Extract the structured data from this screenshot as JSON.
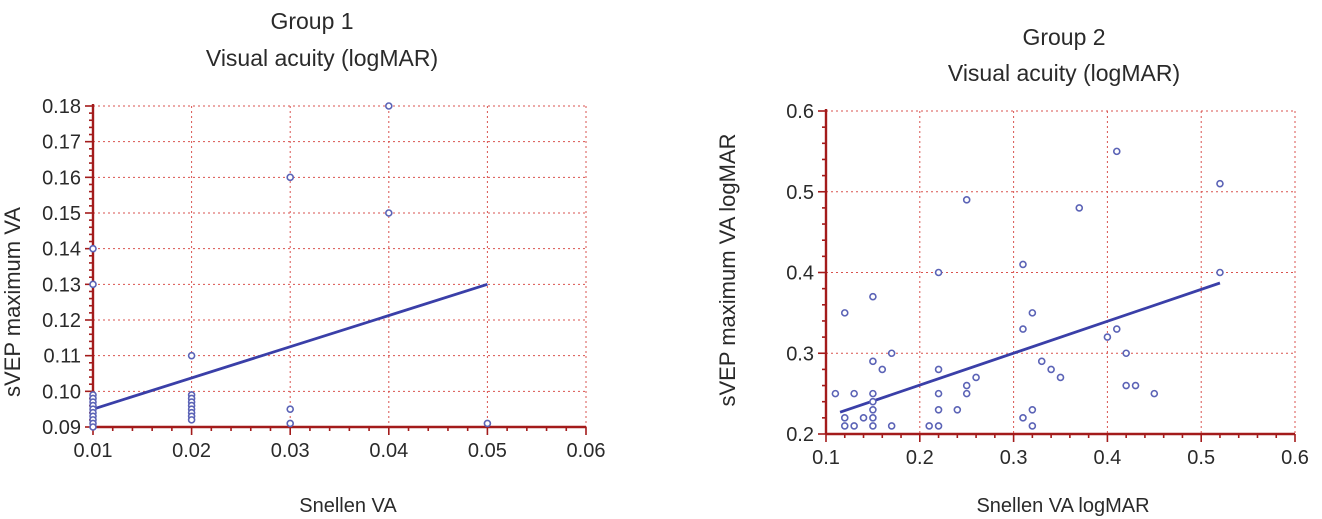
{
  "chart_data": [
    {
      "type": "scatter",
      "title": "Group 1",
      "subtitle": "Visual acuity (logMAR)",
      "xlabel": "Snellen VA",
      "ylabel": "sVEP maximum VA",
      "xlim": [
        0.01,
        0.06
      ],
      "ylim": [
        0.09,
        0.18
      ],
      "x_ticks": [
        "0.01",
        "0.02",
        "0.03",
        "0.04",
        "0.05",
        "0.06"
      ],
      "y_ticks": [
        "0.09",
        "0.10",
        "0.11",
        "0.12",
        "0.13",
        "0.14",
        "0.15",
        "0.16",
        "0.17",
        "0.18"
      ],
      "grid": true,
      "points": [
        {
          "x": 0.01,
          "y": 0.14
        },
        {
          "x": 0.01,
          "y": 0.13
        },
        {
          "x": 0.01,
          "y": 0.099
        },
        {
          "x": 0.01,
          "y": 0.098
        },
        {
          "x": 0.01,
          "y": 0.097
        },
        {
          "x": 0.01,
          "y": 0.096
        },
        {
          "x": 0.01,
          "y": 0.095
        },
        {
          "x": 0.01,
          "y": 0.094
        },
        {
          "x": 0.01,
          "y": 0.093
        },
        {
          "x": 0.01,
          "y": 0.092
        },
        {
          "x": 0.01,
          "y": 0.091
        },
        {
          "x": 0.01,
          "y": 0.09
        },
        {
          "x": 0.02,
          "y": 0.11
        },
        {
          "x": 0.02,
          "y": 0.099
        },
        {
          "x": 0.02,
          "y": 0.098
        },
        {
          "x": 0.02,
          "y": 0.097
        },
        {
          "x": 0.02,
          "y": 0.096
        },
        {
          "x": 0.02,
          "y": 0.095
        },
        {
          "x": 0.02,
          "y": 0.094
        },
        {
          "x": 0.02,
          "y": 0.093
        },
        {
          "x": 0.02,
          "y": 0.092
        },
        {
          "x": 0.03,
          "y": 0.16
        },
        {
          "x": 0.03,
          "y": 0.095
        },
        {
          "x": 0.03,
          "y": 0.091
        },
        {
          "x": 0.04,
          "y": 0.18
        },
        {
          "x": 0.04,
          "y": 0.15
        },
        {
          "x": 0.05,
          "y": 0.091
        }
      ],
      "fit_line": [
        {
          "x": 0.01,
          "y": 0.095
        },
        {
          "x": 0.05,
          "y": 0.13
        }
      ]
    },
    {
      "type": "scatter",
      "title": "Group 2",
      "subtitle": "Visual acuity (logMAR)",
      "xlabel": "Snellen VA logMAR",
      "ylabel": "sVEP maximum VA logMAR",
      "xlim": [
        0.1,
        0.6
      ],
      "ylim": [
        0.2,
        0.6
      ],
      "x_ticks": [
        "0.1",
        "0.2",
        "0.3",
        "0.4",
        "0.5",
        "0.6"
      ],
      "y_ticks": [
        "0.2",
        "0.3",
        "0.4",
        "0.5",
        "0.6"
      ],
      "grid": true,
      "points": [
        {
          "x": 0.11,
          "y": 0.25
        },
        {
          "x": 0.12,
          "y": 0.35
        },
        {
          "x": 0.12,
          "y": 0.22
        },
        {
          "x": 0.12,
          "y": 0.21
        },
        {
          "x": 0.13,
          "y": 0.25
        },
        {
          "x": 0.13,
          "y": 0.21
        },
        {
          "x": 0.14,
          "y": 0.22
        },
        {
          "x": 0.15,
          "y": 0.37
        },
        {
          "x": 0.15,
          "y": 0.29
        },
        {
          "x": 0.15,
          "y": 0.25
        },
        {
          "x": 0.15,
          "y": 0.24
        },
        {
          "x": 0.15,
          "y": 0.23
        },
        {
          "x": 0.15,
          "y": 0.22
        },
        {
          "x": 0.15,
          "y": 0.21
        },
        {
          "x": 0.16,
          "y": 0.28
        },
        {
          "x": 0.17,
          "y": 0.3
        },
        {
          "x": 0.17,
          "y": 0.21
        },
        {
          "x": 0.21,
          "y": 0.21
        },
        {
          "x": 0.22,
          "y": 0.4
        },
        {
          "x": 0.22,
          "y": 0.28
        },
        {
          "x": 0.22,
          "y": 0.25
        },
        {
          "x": 0.22,
          "y": 0.23
        },
        {
          "x": 0.22,
          "y": 0.21
        },
        {
          "x": 0.24,
          "y": 0.23
        },
        {
          "x": 0.25,
          "y": 0.49
        },
        {
          "x": 0.25,
          "y": 0.26
        },
        {
          "x": 0.25,
          "y": 0.25
        },
        {
          "x": 0.26,
          "y": 0.27
        },
        {
          "x": 0.31,
          "y": 0.41
        },
        {
          "x": 0.31,
          "y": 0.33
        },
        {
          "x": 0.31,
          "y": 0.22
        },
        {
          "x": 0.32,
          "y": 0.35
        },
        {
          "x": 0.32,
          "y": 0.23
        },
        {
          "x": 0.32,
          "y": 0.21
        },
        {
          "x": 0.33,
          "y": 0.29
        },
        {
          "x": 0.34,
          "y": 0.28
        },
        {
          "x": 0.35,
          "y": 0.27
        },
        {
          "x": 0.37,
          "y": 0.48
        },
        {
          "x": 0.4,
          "y": 0.32
        },
        {
          "x": 0.41,
          "y": 0.55
        },
        {
          "x": 0.41,
          "y": 0.33
        },
        {
          "x": 0.42,
          "y": 0.3
        },
        {
          "x": 0.42,
          "y": 0.26
        },
        {
          "x": 0.43,
          "y": 0.26
        },
        {
          "x": 0.45,
          "y": 0.25
        },
        {
          "x": 0.52,
          "y": 0.51
        },
        {
          "x": 0.52,
          "y": 0.4
        }
      ],
      "fit_line": [
        {
          "x": 0.115,
          "y": 0.227
        },
        {
          "x": 0.52,
          "y": 0.387
        }
      ]
    }
  ]
}
